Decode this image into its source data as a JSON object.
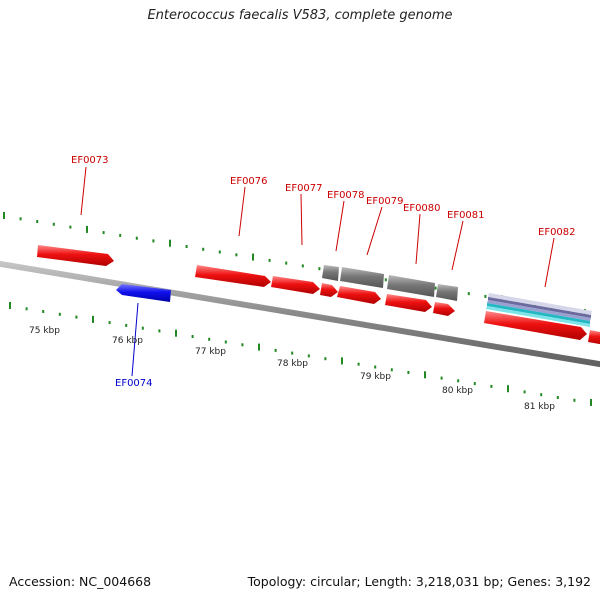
{
  "title": "Enterococcus faecalis V583, complete genome",
  "footer": {
    "accession": "Accession: NC_004668",
    "summary": "Topology: circular; Length: 3,218,031 bp; Genes: 3,192"
  },
  "scale_labels": [
    "75 kbp",
    "76 kbp",
    "77 kbp",
    "78 kbp",
    "79 kbp",
    "80 kbp",
    "81 kbp"
  ],
  "genes": [
    {
      "id": "EF0073",
      "strand": "+"
    },
    {
      "id": "EF0074",
      "strand": "-"
    },
    {
      "id": "EF0076",
      "strand": "+"
    },
    {
      "id": "EF0077",
      "strand": "+"
    },
    {
      "id": "EF0078",
      "strand": "+"
    },
    {
      "id": "EF0079",
      "strand": "+"
    },
    {
      "id": "EF0080",
      "strand": "+"
    },
    {
      "id": "EF0081",
      "strand": "+"
    },
    {
      "id": "EF0082",
      "strand": "+"
    }
  ],
  "colors": {
    "forward_gene": "#ee1111",
    "reverse_gene": "#1111ee",
    "feature_grey": "#777777",
    "backbone": "#888888",
    "ticks": "#228822",
    "label_forward": "#cc0000",
    "label_reverse": "#0000cc"
  }
}
